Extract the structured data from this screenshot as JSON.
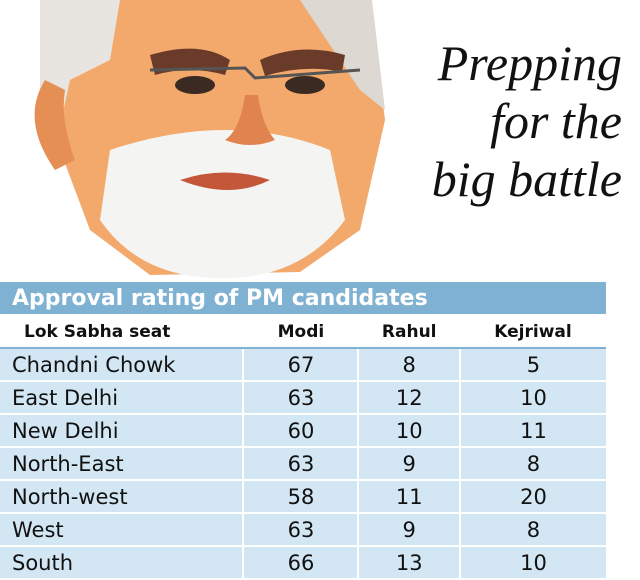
{
  "headline": [
    "Prepping",
    "for the",
    "big battle"
  ],
  "table": {
    "title": "Approval rating of PM candidates",
    "columns": [
      "Lok Sabha seat",
      "Modi",
      "Rahul",
      "Kejriwal"
    ],
    "rows": [
      [
        "Chandni Chowk",
        67,
        8,
        5
      ],
      [
        "East Delhi",
        63,
        12,
        10
      ],
      [
        "New Delhi",
        60,
        10,
        11
      ],
      [
        "North-East",
        63,
        9,
        8
      ],
      [
        "North-west",
        58,
        11,
        20
      ],
      [
        "West",
        63,
        9,
        8
      ],
      [
        "South",
        66,
        13,
        10
      ]
    ]
  }
}
